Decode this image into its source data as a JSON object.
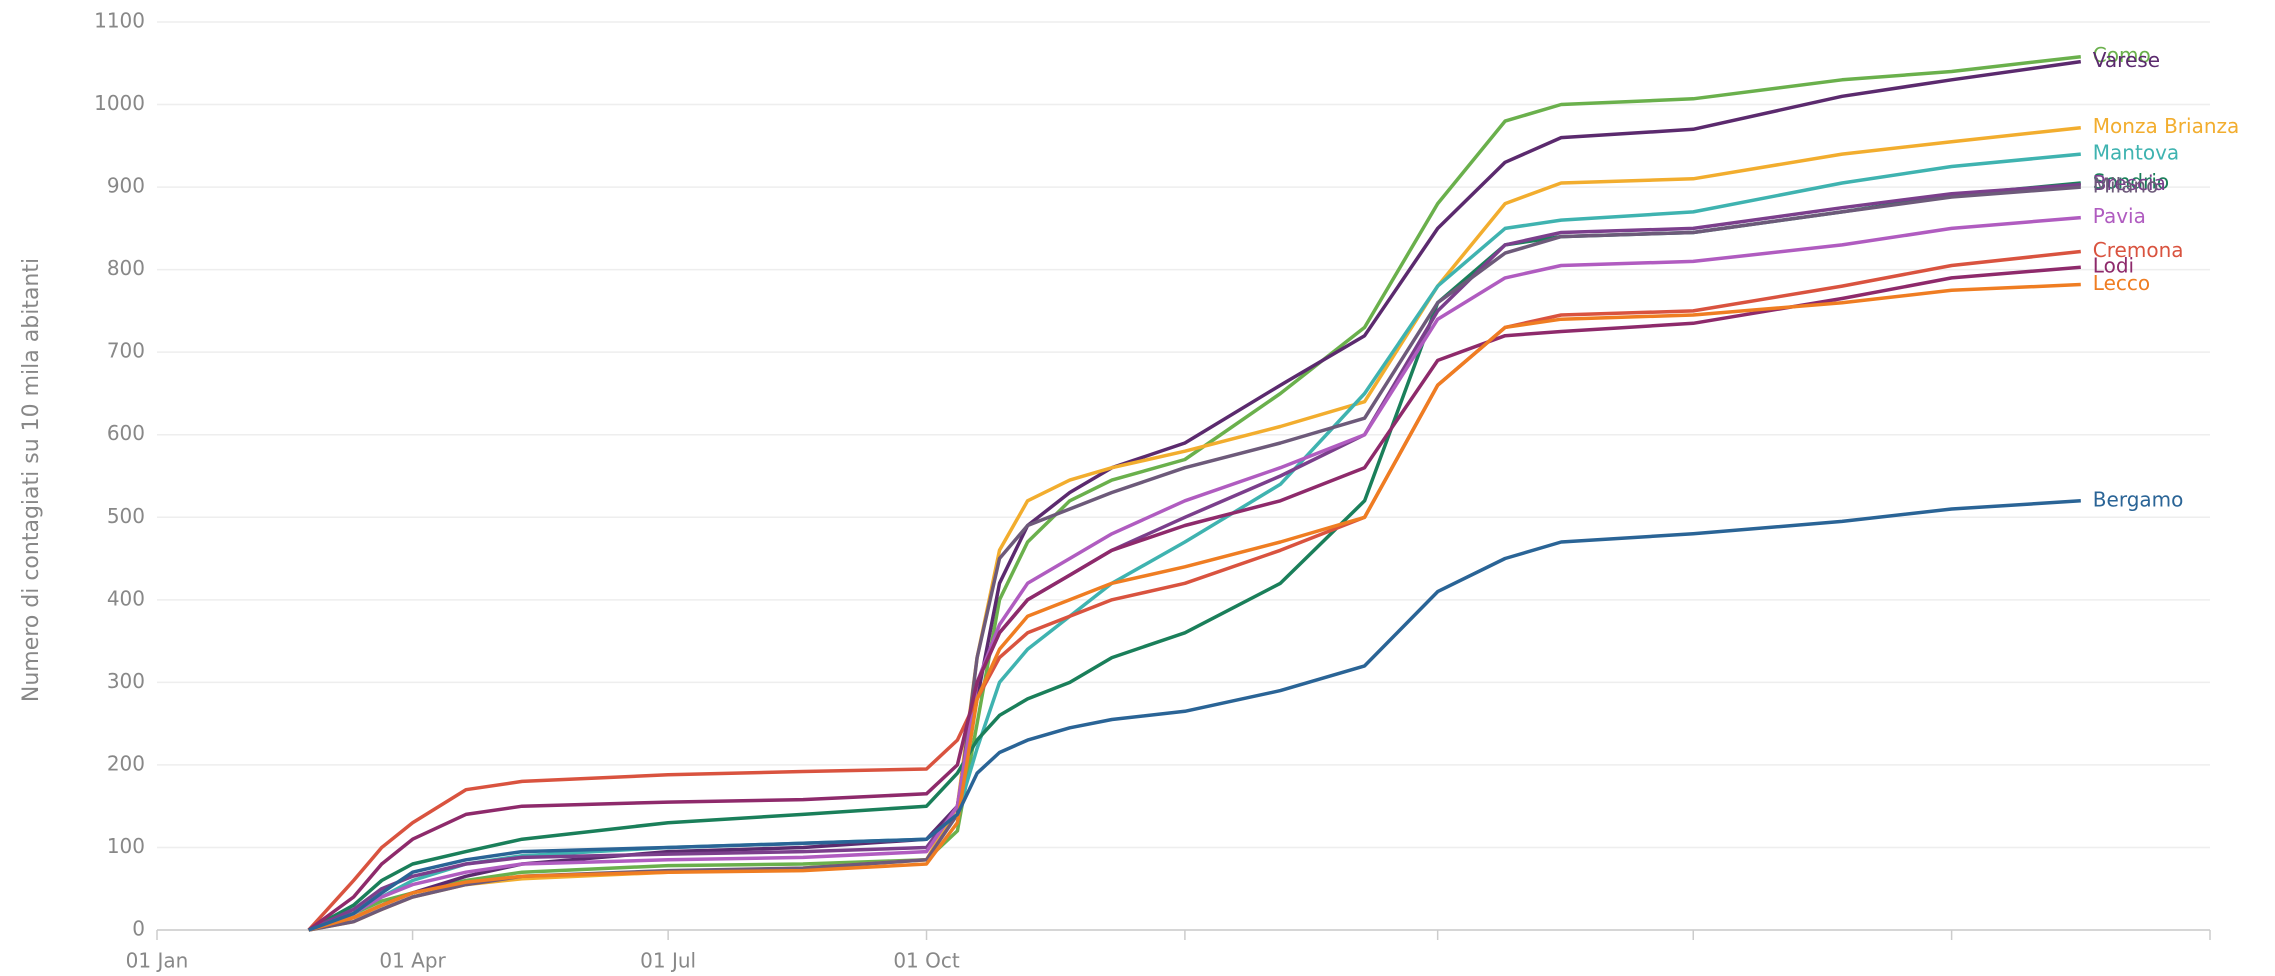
{
  "chart_data": {
    "type": "line",
    "y_label": "Numero di contagiati su 10 mila abitanti",
    "x": [
      54,
      70,
      80,
      91,
      110,
      130,
      182,
      230,
      274,
      285,
      292,
      300,
      310,
      325,
      340,
      366,
      400,
      430,
      456,
      480,
      500,
      547,
      600,
      639,
      685
    ],
    "xlim": [
      0,
      731
    ],
    "xticks": [
      {
        "value": 0,
        "label": "01 Jan"
      },
      {
        "value": 91,
        "label": "01 Apr"
      },
      {
        "value": 182,
        "label": "01 Jul"
      },
      {
        "value": 274,
        "label": "01 Oct"
      },
      {
        "value": 366,
        "label": null
      },
      {
        "value": 456,
        "label": null
      },
      {
        "value": 547,
        "label": null
      },
      {
        "value": 639,
        "label": null
      },
      {
        "value": 731,
        "label": null
      }
    ],
    "ylim": [
      0,
      1100
    ],
    "yticks": [
      0,
      100,
      200,
      300,
      400,
      500,
      600,
      700,
      800,
      900,
      1000,
      1100
    ],
    "grid": true,
    "series": [
      {
        "name": "Como",
        "color": "#6ab04c",
        "values": [
          0,
          20,
          35,
          45,
          60,
          70,
          78,
          80,
          85,
          120,
          250,
          400,
          470,
          520,
          545,
          570,
          650,
          730,
          880,
          980,
          1000,
          1007,
          1030,
          1040,
          1058
        ]
      },
      {
        "name": "Varese",
        "color": "#5b2a6e",
        "values": [
          0,
          15,
          30,
          45,
          65,
          80,
          95,
          100,
          110,
          150,
          280,
          420,
          490,
          530,
          560,
          590,
          660,
          720,
          850,
          930,
          960,
          970,
          1010,
          1030,
          1052
        ]
      },
      {
        "name": "Monza Brianza",
        "color": "#f2ad2e",
        "values": [
          0,
          10,
          25,
          40,
          55,
          62,
          70,
          75,
          85,
          150,
          330,
          460,
          520,
          545,
          560,
          580,
          610,
          640,
          780,
          880,
          905,
          910,
          940,
          955,
          972
        ]
      },
      {
        "name": "Mantova",
        "color": "#3fb3b0",
        "values": [
          0,
          20,
          40,
          60,
          80,
          90,
          100,
          105,
          110,
          140,
          220,
          300,
          340,
          380,
          420,
          470,
          540,
          650,
          780,
          850,
          860,
          870,
          905,
          925,
          940
        ]
      },
      {
        "name": "Sondrio",
        "color": "#1a7f5a",
        "values": [
          0,
          30,
          60,
          80,
          95,
          110,
          130,
          140,
          150,
          190,
          230,
          260,
          280,
          300,
          330,
          360,
          420,
          520,
          760,
          830,
          840,
          845,
          870,
          890,
          905
        ]
      },
      {
        "name": "Brescia",
        "color": "#7b3f8c",
        "values": [
          0,
          25,
          50,
          65,
          80,
          88,
          92,
          95,
          100,
          150,
          300,
          360,
          400,
          430,
          460,
          500,
          550,
          600,
          750,
          830,
          845,
          850,
          875,
          892,
          903
        ]
      },
      {
        "name": "Milano",
        "color": "#6d5a7a",
        "values": [
          0,
          10,
          25,
          40,
          55,
          65,
          72,
          75,
          85,
          140,
          330,
          450,
          490,
          510,
          530,
          560,
          590,
          620,
          760,
          820,
          840,
          845,
          870,
          888,
          900
        ]
      },
      {
        "name": "Pavia",
        "color": "#b05cc0",
        "values": [
          0,
          20,
          40,
          55,
          70,
          80,
          85,
          88,
          95,
          150,
          300,
          370,
          420,
          450,
          480,
          520,
          560,
          600,
          740,
          790,
          805,
          810,
          830,
          850,
          863
        ]
      },
      {
        "name": "Cremona",
        "color": "#d9533f",
        "values": [
          0,
          60,
          100,
          130,
          170,
          180,
          188,
          192,
          195,
          230,
          280,
          330,
          360,
          380,
          400,
          420,
          460,
          500,
          660,
          730,
          745,
          750,
          780,
          805,
          822
        ]
      },
      {
        "name": "Lodi",
        "color": "#8e2a6b",
        "values": [
          0,
          40,
          80,
          110,
          140,
          150,
          155,
          158,
          165,
          200,
          300,
          360,
          400,
          430,
          460,
          490,
          520,
          560,
          690,
          720,
          725,
          735,
          765,
          790,
          803
        ]
      },
      {
        "name": "Lecco",
        "color": "#ef7d22",
        "values": [
          0,
          15,
          30,
          45,
          58,
          65,
          70,
          72,
          80,
          130,
          280,
          340,
          380,
          400,
          420,
          440,
          470,
          500,
          660,
          730,
          740,
          745,
          760,
          775,
          782
        ]
      },
      {
        "name": "Bergamo",
        "color": "#2a6496",
        "values": [
          0,
          20,
          45,
          70,
          85,
          95,
          100,
          105,
          110,
          140,
          190,
          215,
          230,
          245,
          255,
          265,
          290,
          320,
          410,
          450,
          470,
          480,
          495,
          510,
          520
        ]
      }
    ]
  }
}
